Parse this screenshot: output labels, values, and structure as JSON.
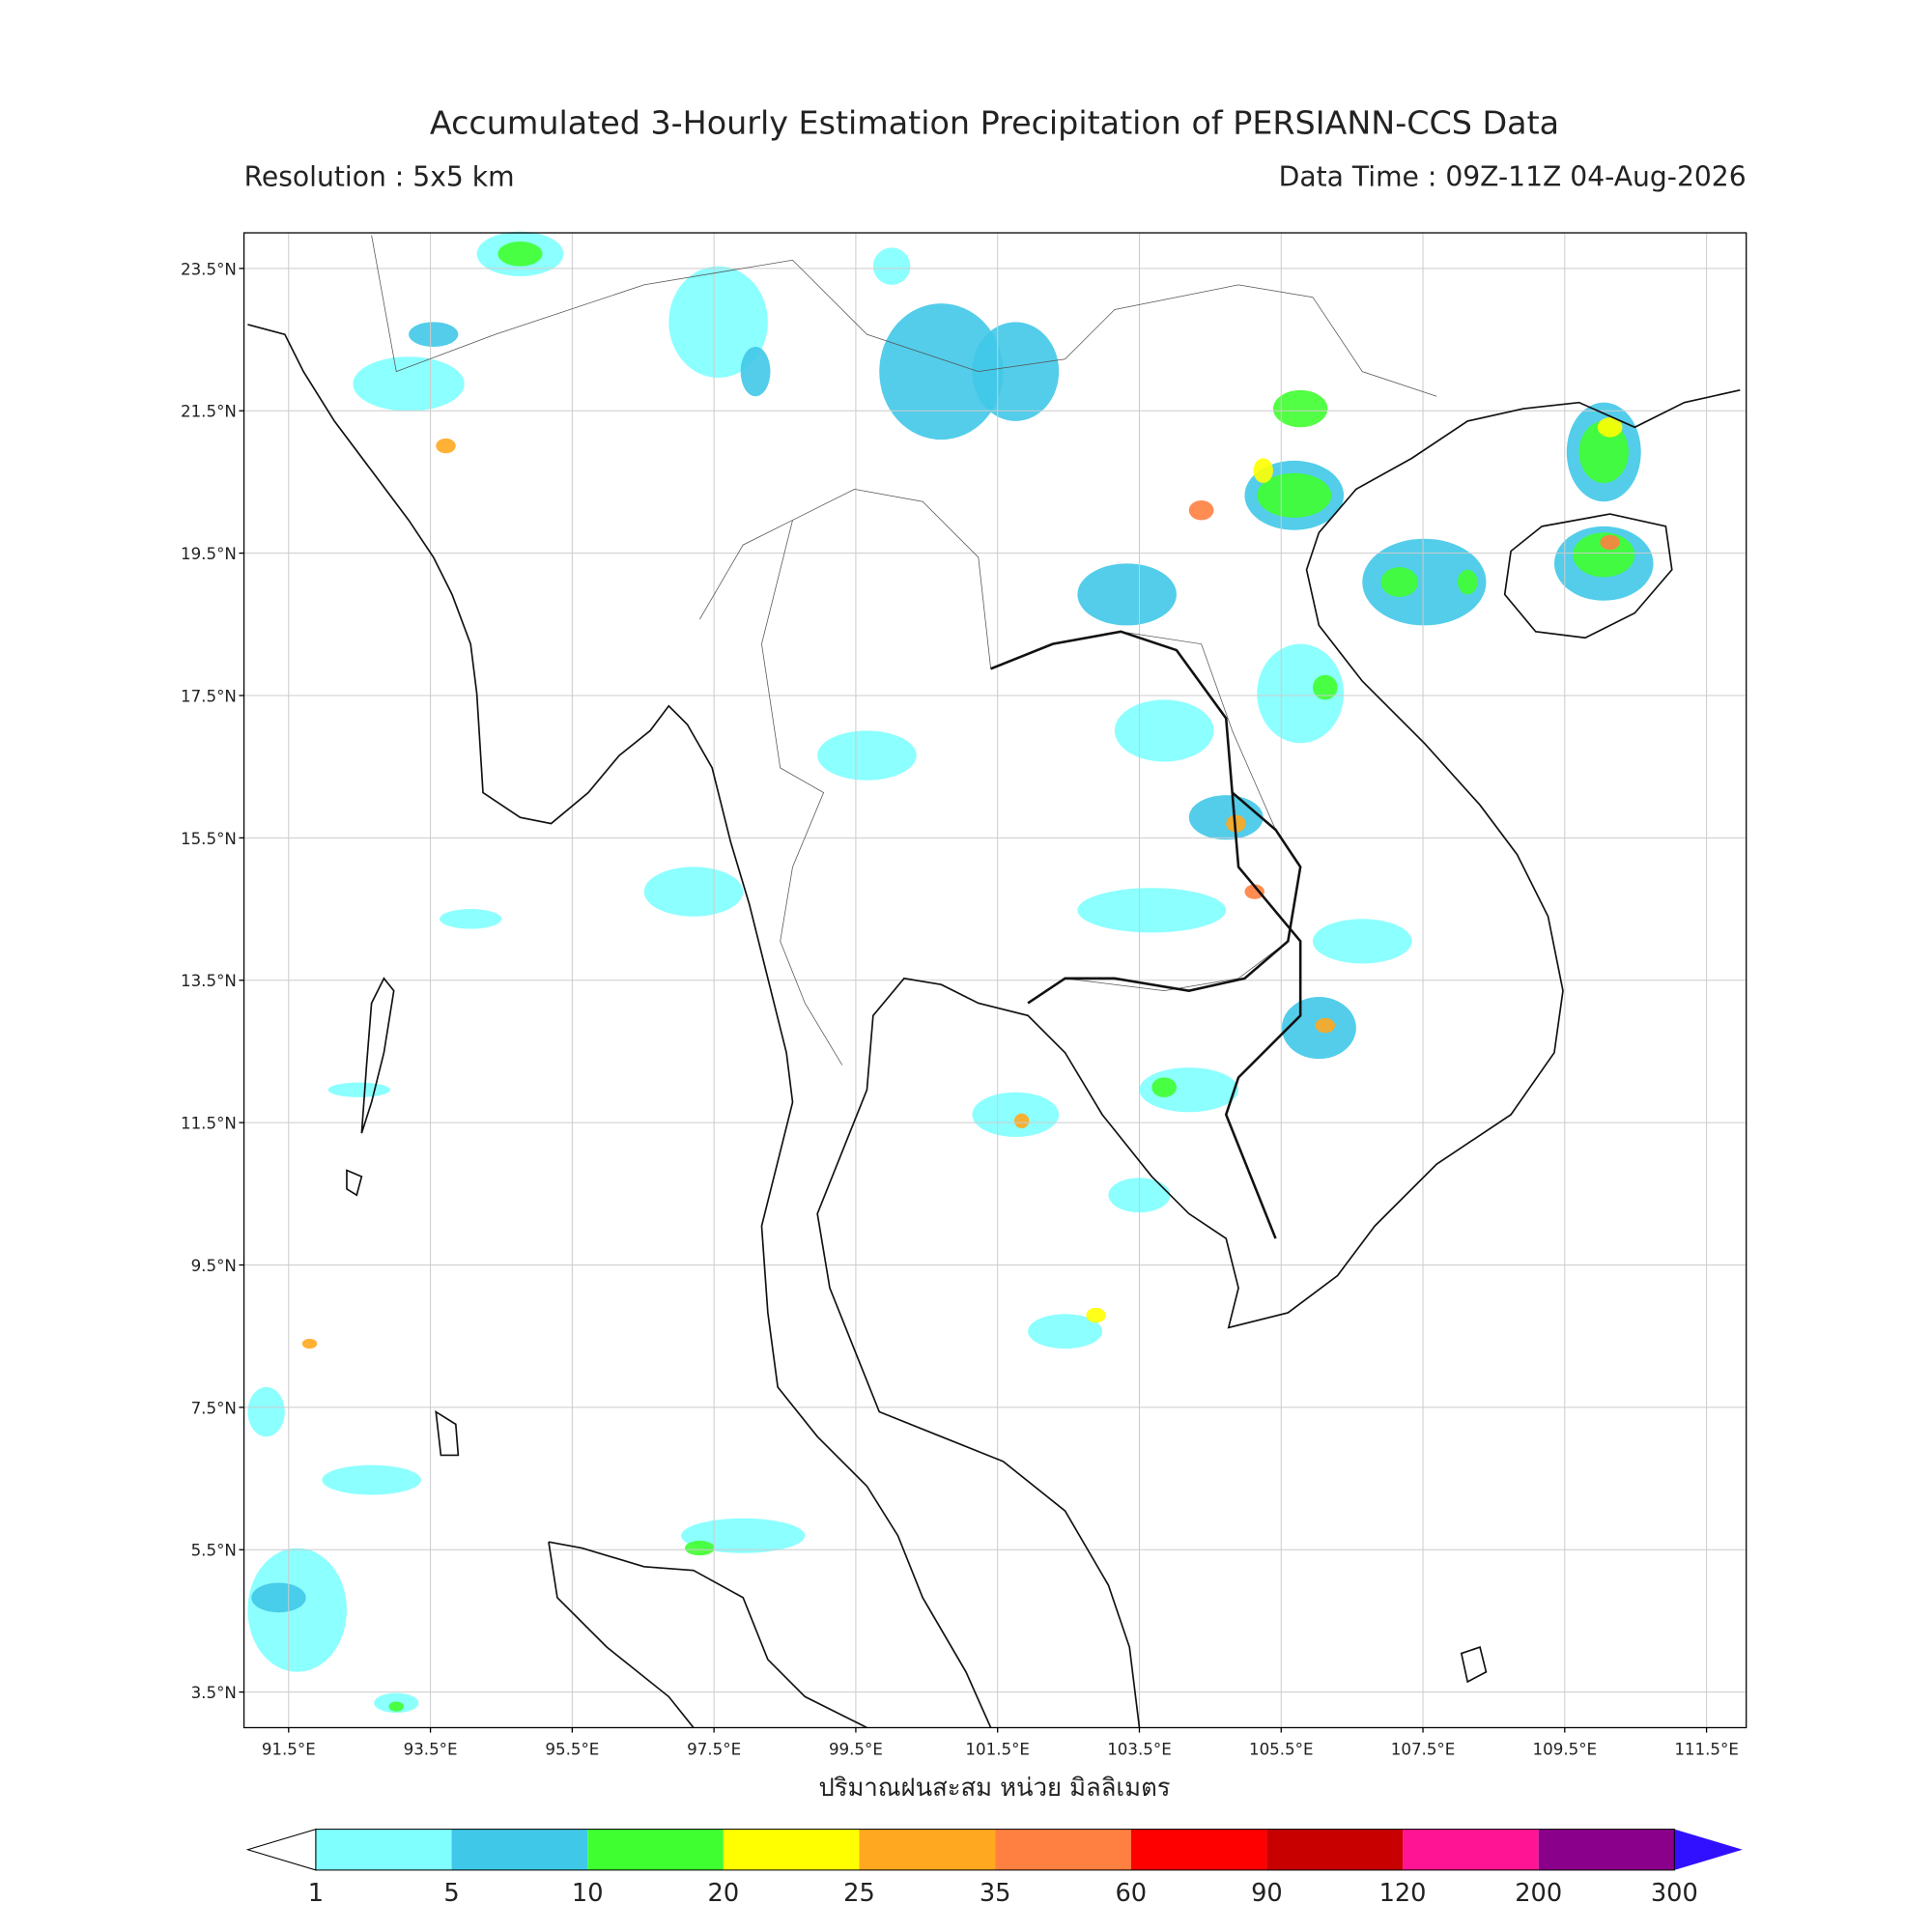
{
  "header": {
    "title": "Accumulated 3-Hourly Estimation Precipitation of PERSIANN-CCS Data",
    "resolution": "Resolution : 5x5 km",
    "data_time": "Data Time : 09Z-11Z 04-Aug-2026"
  },
  "map": {
    "xlim": [
      90.87,
      112.06
    ],
    "ylim": [
      3.0,
      24.0
    ],
    "xticks": [
      {
        "value": 91.5,
        "label": "91.5°E"
      },
      {
        "value": 93.5,
        "label": "93.5°E"
      },
      {
        "value": 95.5,
        "label": "95.5°E"
      },
      {
        "value": 97.5,
        "label": "97.5°E"
      },
      {
        "value": 99.5,
        "label": "99.5°E"
      },
      {
        "value": 101.5,
        "label": "101.5°E"
      },
      {
        "value": 103.5,
        "label": "103.5°E"
      },
      {
        "value": 105.5,
        "label": "105.5°E"
      },
      {
        "value": 107.5,
        "label": "107.5°E"
      },
      {
        "value": 109.5,
        "label": "109.5°E"
      },
      {
        "value": 111.5,
        "label": "111.5°E"
      }
    ],
    "yticks": [
      {
        "value": 3.5,
        "label": "3.5°N"
      },
      {
        "value": 5.5,
        "label": "5.5°N"
      },
      {
        "value": 7.5,
        "label": "7.5°N"
      },
      {
        "value": 9.5,
        "label": "9.5°N"
      },
      {
        "value": 11.5,
        "label": "11.5°N"
      },
      {
        "value": 13.5,
        "label": "13.5°N"
      },
      {
        "value": 15.5,
        "label": "15.5°N"
      },
      {
        "value": 17.5,
        "label": "17.5°N"
      },
      {
        "value": 19.5,
        "label": "19.5°N"
      },
      {
        "value": 21.5,
        "label": "21.5°N"
      },
      {
        "value": 23.5,
        "label": "23.5°N"
      }
    ],
    "grid": true,
    "xlabel": "ปริมาณฝนสะสม หน่วย มิลลิเมตร"
  },
  "colorbar": {
    "levels": [
      1,
      5,
      10,
      20,
      25,
      35,
      60,
      90,
      120,
      200,
      300
    ],
    "colors": [
      "#80ffff",
      "#40c8e8",
      "#40ff30",
      "#ffff00",
      "#ffa820",
      "#ff8040",
      "#ff0000",
      "#c80000",
      "#ff1493",
      "#8b008b"
    ],
    "under_color": "#ffffff",
    "over_color": "#3010ff"
  }
}
